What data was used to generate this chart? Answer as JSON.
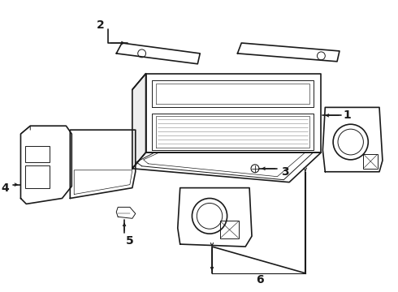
{
  "background_color": "#ffffff",
  "line_color": "#1a1a1a",
  "label_color": "#1a1a1a",
  "lw_main": 1.2,
  "lw_thin": 0.7,
  "lw_label": 0.8,
  "font_size": 10,
  "font_weight": "bold"
}
